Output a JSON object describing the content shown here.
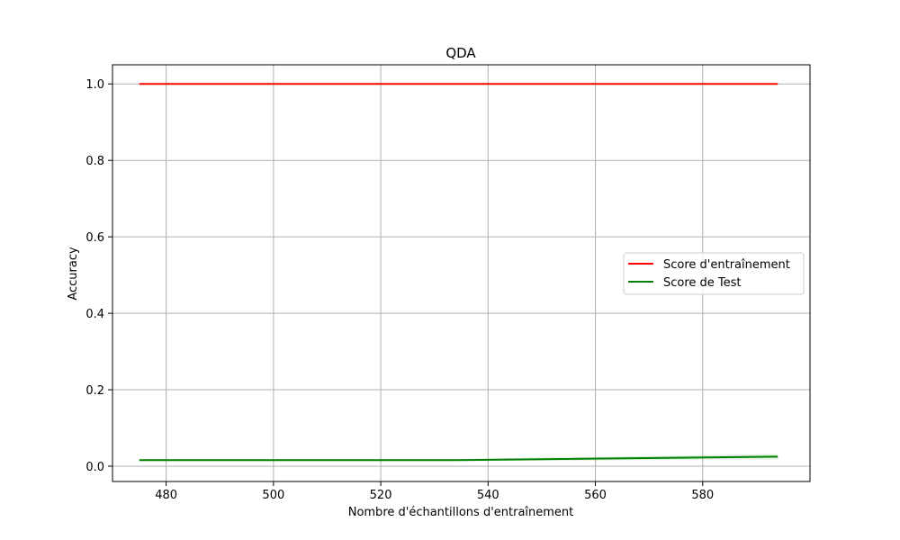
{
  "chart_data": {
    "type": "line",
    "title": "QDA",
    "xlabel": "Nombre d'échantillons d'entraînement",
    "ylabel": "Accuracy",
    "xlim": [
      470,
      600
    ],
    "ylim": [
      -0.04,
      1.05
    ],
    "x_ticks": [
      480,
      500,
      520,
      540,
      560,
      580
    ],
    "y_ticks": [
      0.0,
      0.2,
      0.4,
      0.6,
      0.8,
      1.0
    ],
    "x_tick_labels": [
      "480",
      "500",
      "520",
      "540",
      "560",
      "580"
    ],
    "y_tick_labels": [
      "0.0",
      "0.2",
      "0.4",
      "0.6",
      "0.8",
      "1.0"
    ],
    "grid": true,
    "legend_position": "center-right",
    "x": [
      475,
      534,
      594
    ],
    "series": [
      {
        "name": "Score d'entraînement",
        "color": "#ff0000",
        "values": [
          1.0,
          1.0,
          1.0
        ],
        "band_lower": [
          1.0,
          1.0,
          1.0
        ],
        "band_upper": [
          1.0,
          1.0,
          1.0
        ]
      },
      {
        "name": "Score de Test",
        "color": "#008000",
        "values": [
          0.016,
          0.016,
          0.025
        ],
        "band_lower": [
          0.013,
          0.013,
          0.018
        ],
        "band_upper": [
          0.019,
          0.019,
          0.032
        ]
      }
    ]
  }
}
